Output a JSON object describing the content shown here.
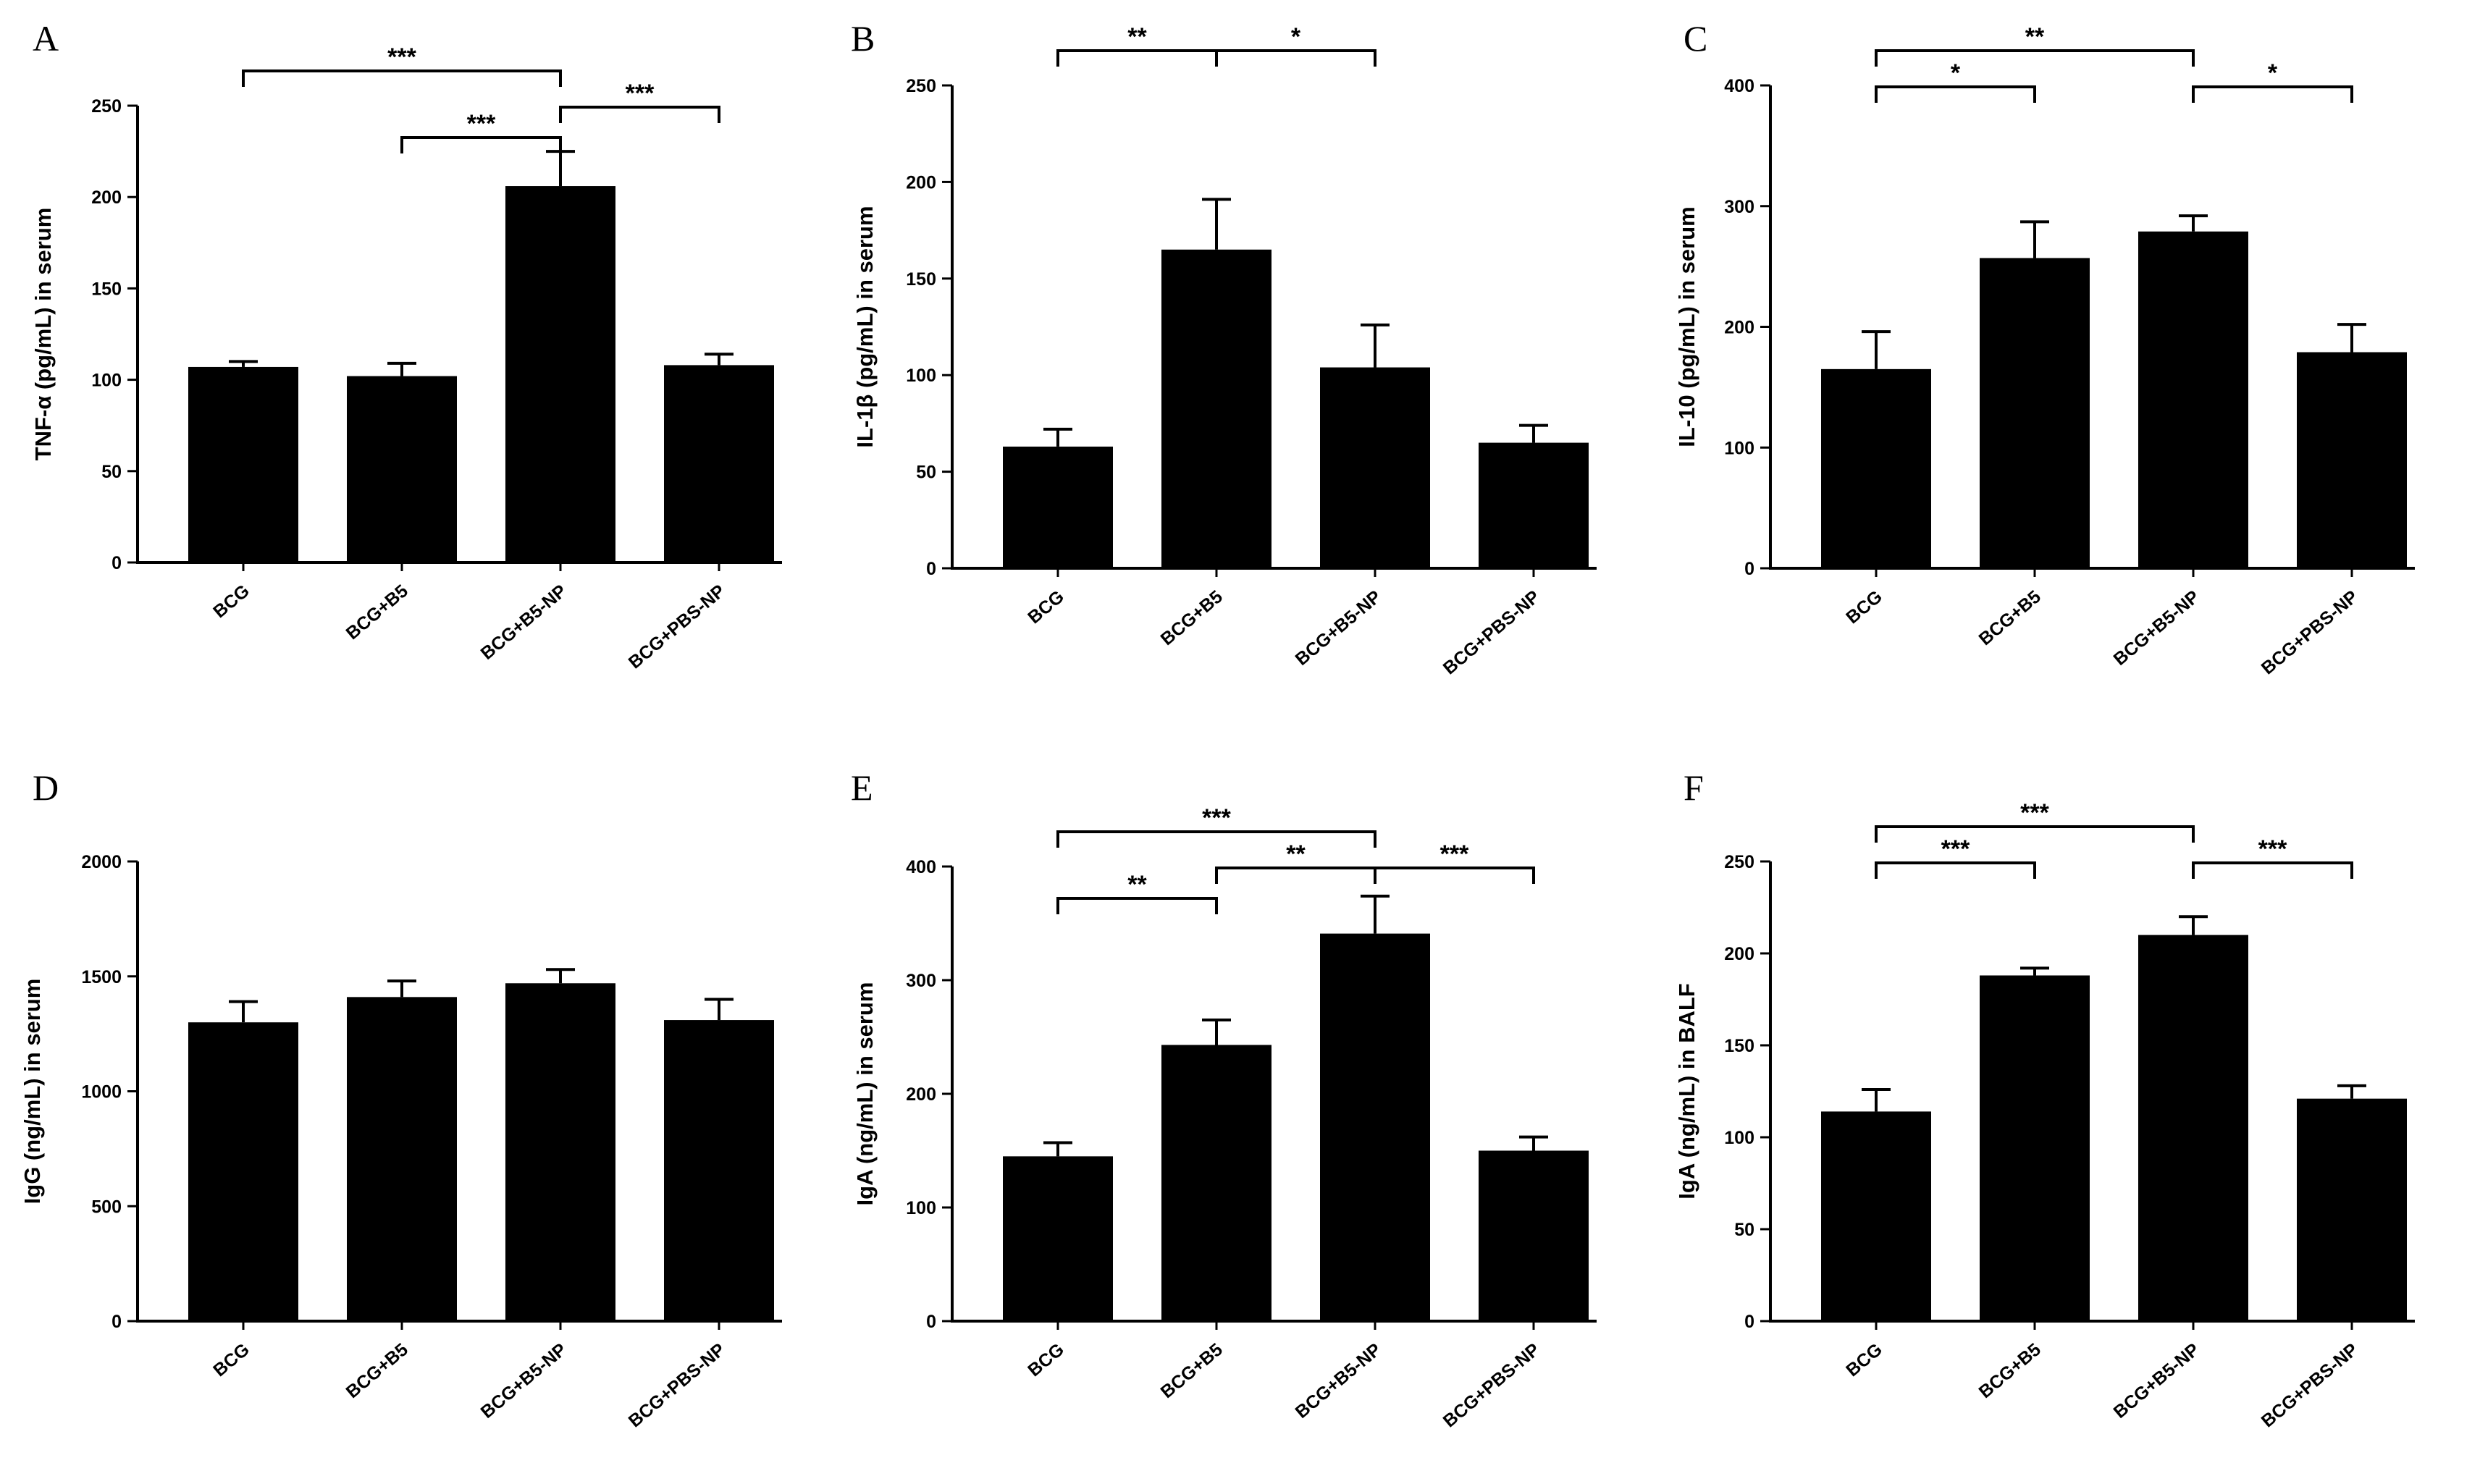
{
  "figure": {
    "bar_color": "#000000",
    "axis_color": "#000000",
    "background": "#ffffff"
  },
  "chart_data": [
    {
      "panel": "A",
      "type": "bar",
      "categories": [
        "BCG",
        "BCG+B5",
        "BCG+B5-NP",
        "BCG+PBS-NP"
      ],
      "values": [
        107,
        102,
        206,
        108
      ],
      "errors": [
        3,
        7,
        19,
        6
      ],
      "ylabel": "TNF-α (pg/mL) in serum",
      "ylim": [
        0,
        250
      ],
      "yticks": [
        0,
        50,
        100,
        150,
        200,
        250
      ],
      "grid": false,
      "significance": [
        {
          "from": 0,
          "to": 2,
          "level": 0,
          "label": "***"
        },
        {
          "from": 2,
          "to": 3,
          "level": 1,
          "label": "***"
        },
        {
          "from": 1,
          "to": 2,
          "level": 2,
          "label": "***"
        }
      ]
    },
    {
      "panel": "B",
      "type": "bar",
      "categories": [
        "BCG",
        "BCG+B5",
        "BCG+B5-NP",
        "BCG+PBS-NP"
      ],
      "values": [
        63,
        165,
        104,
        65
      ],
      "errors": [
        9,
        26,
        22,
        9
      ],
      "ylabel": "IL-1β (pg/mL) in serum",
      "ylim": [
        0,
        250
      ],
      "yticks": [
        0,
        50,
        100,
        150,
        200,
        250
      ],
      "grid": false,
      "significance": [
        {
          "from": 0,
          "to": 1,
          "level": 0,
          "label": "**"
        },
        {
          "from": 1,
          "to": 2,
          "level": 0,
          "label": "*"
        }
      ]
    },
    {
      "panel": "C",
      "type": "bar",
      "categories": [
        "BCG",
        "BCG+B5",
        "BCG+B5-NP",
        "BCG+PBS-NP"
      ],
      "values": [
        165,
        257,
        279,
        179
      ],
      "errors": [
        31,
        30,
        13,
        23
      ],
      "ylabel": "IL-10 (pg/mL) in serum",
      "ylim": [
        0,
        400
      ],
      "yticks": [
        0,
        100,
        200,
        300,
        400
      ],
      "grid": false,
      "significance": [
        {
          "from": 0,
          "to": 2,
          "level": 0,
          "label": "**"
        },
        {
          "from": 0,
          "to": 1,
          "level": 1,
          "label": "*"
        },
        {
          "from": 2,
          "to": 3,
          "level": 1,
          "label": "*"
        }
      ]
    },
    {
      "panel": "D",
      "type": "bar",
      "categories": [
        "BCG",
        "BCG+B5",
        "BCG+B5-NP",
        "BCG+PBS-NP"
      ],
      "values": [
        1300,
        1410,
        1470,
        1310
      ],
      "errors": [
        90,
        70,
        60,
        90
      ],
      "ylabel": "IgG (ng/mL) in serum",
      "ylim": [
        0,
        2000
      ],
      "yticks": [
        0,
        500,
        1000,
        1500,
        2000
      ],
      "grid": false,
      "significance": []
    },
    {
      "panel": "E",
      "type": "bar",
      "categories": [
        "BCG",
        "BCG+B5",
        "BCG+B5-NP",
        "BCG+PBS-NP"
      ],
      "values": [
        145,
        243,
        341,
        150
      ],
      "errors": [
        12,
        22,
        33,
        12
      ],
      "ylabel": "IgA (ng/mL) in serum",
      "ylim": [
        0,
        400
      ],
      "yticks": [
        0,
        100,
        200,
        300,
        400
      ],
      "grid": false,
      "significance": [
        {
          "from": 0,
          "to": 2,
          "level": 0,
          "label": "***"
        },
        {
          "from": 1,
          "to": 2,
          "level": 1,
          "label": "**"
        },
        {
          "from": 2,
          "to": 3,
          "level": 1,
          "label": "***"
        },
        {
          "from": 0,
          "to": 1,
          "level": 2,
          "label": "**"
        }
      ]
    },
    {
      "panel": "F",
      "type": "bar",
      "categories": [
        "BCG",
        "BCG+B5",
        "BCG+B5-NP",
        "BCG+PBS-NP"
      ],
      "values": [
        114,
        188,
        210,
        121
      ],
      "errors": [
        12,
        4,
        10,
        7
      ],
      "ylabel": "IgA (ng/mL) in BALF",
      "ylim": [
        0,
        250
      ],
      "yticks": [
        0,
        50,
        100,
        150,
        200,
        250
      ],
      "grid": false,
      "significance": [
        {
          "from": 0,
          "to": 2,
          "level": 0,
          "label": "***"
        },
        {
          "from": 0,
          "to": 1,
          "level": 1,
          "label": "***"
        },
        {
          "from": 2,
          "to": 3,
          "level": 1,
          "label": "***"
        }
      ]
    }
  ]
}
